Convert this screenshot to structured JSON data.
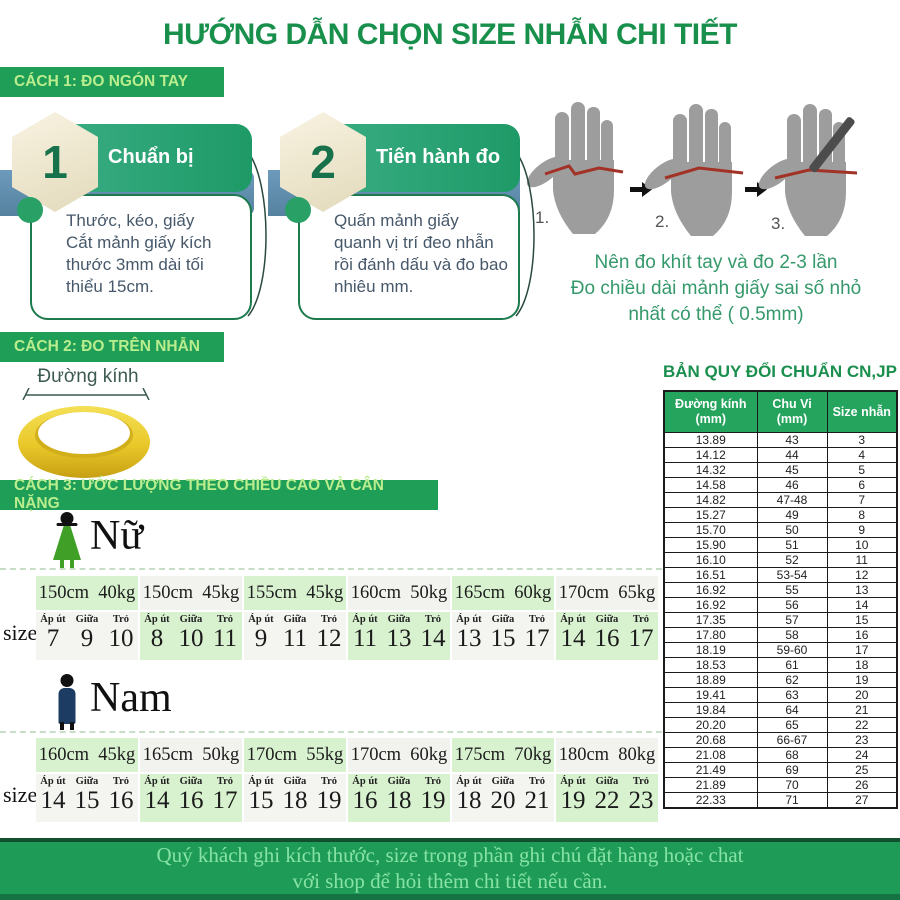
{
  "page": {
    "title": "HƯỚNG DẪN CHỌN SIZE NHẪN CHI TIẾT"
  },
  "colors": {
    "primary_green": "#1f9e58",
    "title_green": "#18904c",
    "badge_text_green": "#b9ed8d",
    "table_header_green": "#25a45e",
    "light_green_cell": "#d8f2d0",
    "blue_band": "#6d9abc",
    "gold_ring": "#e9c829",
    "footer_text_green": "#86e3a4",
    "red_mark": "#a23225"
  },
  "method1": {
    "badge": "CÁCH 1: ĐO NGÓN TAY",
    "steps": [
      {
        "num": "1",
        "title": "Chuẩn bị",
        "body": "Thước, kéo, giấy\nCắt mảnh giấy kích thước 3mm dài tối thiểu 15cm."
      },
      {
        "num": "2",
        "title": "Tiến hành đo",
        "body": "Quấn mảnh giấy quanh vị trí đeo nhẫn rồi đánh dấu và đo bao nhiêu mm."
      }
    ],
    "hand_labels": [
      "1.",
      "2.",
      "3."
    ],
    "note": "Nên đo khít tay và đo 2-3 lần\nĐo chiều dài mảnh giấy sai số nhỏ\nnhất có thể ( 0.5mm)"
  },
  "method2": {
    "badge": "CÁCH 2: ĐO TRÊN NHẪN",
    "diameter_label": "Đường kính"
  },
  "conversion_table": {
    "title": "BẢN QUY ĐỔI CHUẨN CN,JP",
    "headers": [
      "Đường kính\n(mm)",
      "Chu Vi\n(mm)",
      "Size nhẫn"
    ],
    "rows": [
      [
        "13.89",
        "43",
        "3"
      ],
      [
        "14.12",
        "44",
        "4"
      ],
      [
        "14.32",
        "45",
        "5"
      ],
      [
        "14.58",
        "46",
        "6"
      ],
      [
        "14.82",
        "47-48",
        "7"
      ],
      [
        "15.27",
        "49",
        "8"
      ],
      [
        "15.70",
        "50",
        "9"
      ],
      [
        "15.90",
        "51",
        "10"
      ],
      [
        "16.10",
        "52",
        "11"
      ],
      [
        "16.51",
        "53-54",
        "12"
      ],
      [
        "16.92",
        "55",
        "13"
      ],
      [
        "16.92",
        "56",
        "14"
      ],
      [
        "17.35",
        "57",
        "15"
      ],
      [
        "17.80",
        "58",
        "16"
      ],
      [
        "18.19",
        "59-60",
        "17"
      ],
      [
        "18.53",
        "61",
        "18"
      ],
      [
        "18.89",
        "62",
        "19"
      ],
      [
        "19.41",
        "63",
        "20"
      ],
      [
        "19.84",
        "64",
        "21"
      ],
      [
        "20.20",
        "65",
        "22"
      ],
      [
        "20.68",
        "66-67",
        "23"
      ],
      [
        "21.08",
        "68",
        "24"
      ],
      [
        "21.49",
        "69",
        "25"
      ],
      [
        "21.89",
        "70",
        "26"
      ],
      [
        "22.33",
        "71",
        "27"
      ]
    ]
  },
  "method3": {
    "badge": "CÁCH 3: ƯỚC LƯỢNG THEO CHIỀU CAO VÀ CÂN NẶNG",
    "size_label": "size",
    "finger_headers": [
      "Áp út",
      "Giữa",
      "Trỏ"
    ],
    "female": {
      "label": "Nữ",
      "groups": [
        {
          "hw": "150cm  40kg",
          "sizes": [
            "7",
            "9",
            "10"
          ]
        },
        {
          "hw": "150cm  45kg",
          "sizes": [
            "8",
            "10",
            "11"
          ]
        },
        {
          "hw": "155cm  45kg",
          "sizes": [
            "9",
            "11",
            "12"
          ]
        },
        {
          "hw": "160cm  50kg",
          "sizes": [
            "11",
            "13",
            "14"
          ]
        },
        {
          "hw": "165cm  60kg",
          "sizes": [
            "13",
            "15",
            "17"
          ]
        },
        {
          "hw": "170cm  65kg",
          "sizes": [
            "14",
            "16",
            "17"
          ]
        }
      ]
    },
    "male": {
      "label": "Nam",
      "groups": [
        {
          "hw": "160cm  45kg",
          "sizes": [
            "14",
            "15",
            "16"
          ]
        },
        {
          "hw": "165cm  50kg",
          "sizes": [
            "14",
            "16",
            "17"
          ]
        },
        {
          "hw": "170cm  55kg",
          "sizes": [
            "15",
            "18",
            "19"
          ]
        },
        {
          "hw": "170cm  60kg",
          "sizes": [
            "16",
            "18",
            "19"
          ]
        },
        {
          "hw": "175cm  70kg",
          "sizes": [
            "18",
            "20",
            "21"
          ]
        },
        {
          "hw": "180cm  80kg",
          "sizes": [
            "19",
            "22",
            "23"
          ]
        }
      ]
    }
  },
  "footer": {
    "line1": "Quý khách ghi kích thước, size trong phần ghi chú đặt hàng hoặc chat",
    "line2": "với shop để hỏi thêm chi tiết nếu cần."
  }
}
